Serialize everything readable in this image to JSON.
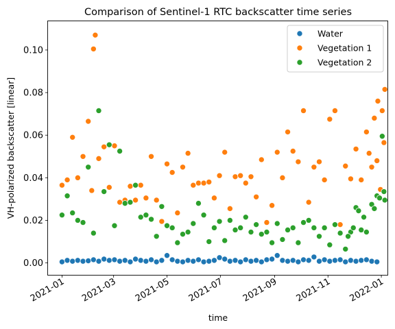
{
  "chart_data": {
    "type": "scatter",
    "title": "Comparison of Sentinel-1 RTC backscatter time series",
    "xlabel": "time",
    "ylabel": "VH-polarized backscatter [linear]",
    "x_ticks": [
      "2021-01",
      "2021-03",
      "2021-05",
      "2021-07",
      "2021-09",
      "2021-11",
      "2022-01"
    ],
    "y_ticks": [
      "0.00",
      "0.02",
      "0.04",
      "0.06",
      "0.08",
      "0.10"
    ],
    "xlim": [
      "2020-12-16",
      "2022-01-08"
    ],
    "ylim": [
      -0.0056,
      0.1135
    ],
    "grid": false,
    "legend_position": "top-right",
    "series": [
      {
        "name": "Water",
        "color": "#1f77b4",
        "points": [
          [
            "2021-01-01",
            0.0005
          ],
          [
            "2021-01-07",
            0.0012
          ],
          [
            "2021-01-13",
            0.0008
          ],
          [
            "2021-01-19",
            0.0012
          ],
          [
            "2021-01-25",
            0.0008
          ],
          [
            "2021-01-31",
            0.001
          ],
          [
            "2021-02-06",
            0.0015
          ],
          [
            "2021-02-12",
            0.0008
          ],
          [
            "2021-02-18",
            0.0018
          ],
          [
            "2021-02-24",
            0.0012
          ],
          [
            "2021-03-02",
            0.0015
          ],
          [
            "2021-03-08",
            0.0008
          ],
          [
            "2021-03-14",
            0.0012
          ],
          [
            "2021-03-20",
            0.0005
          ],
          [
            "2021-03-26",
            0.0018
          ],
          [
            "2021-04-01",
            0.0012
          ],
          [
            "2021-04-07",
            0.0008
          ],
          [
            "2021-04-13",
            0.0015
          ],
          [
            "2021-04-19",
            0.0005
          ],
          [
            "2021-04-25",
            0.0012
          ],
          [
            "2021-05-01",
            0.0035
          ],
          [
            "2021-05-07",
            0.0015
          ],
          [
            "2021-05-13",
            0.0008
          ],
          [
            "2021-05-19",
            0.0005
          ],
          [
            "2021-05-25",
            0.0012
          ],
          [
            "2021-05-31",
            0.0008
          ],
          [
            "2021-06-06",
            0.0015
          ],
          [
            "2021-06-12",
            0.0005
          ],
          [
            "2021-06-18",
            0.0008
          ],
          [
            "2021-06-24",
            0.0012
          ],
          [
            "2021-06-30",
            0.0025
          ],
          [
            "2021-07-06",
            0.0018
          ],
          [
            "2021-07-12",
            0.0008
          ],
          [
            "2021-07-18",
            0.0012
          ],
          [
            "2021-07-24",
            0.0005
          ],
          [
            "2021-07-30",
            0.0015
          ],
          [
            "2021-08-05",
            0.0008
          ],
          [
            "2021-08-11",
            0.0012
          ],
          [
            "2021-08-17",
            0.0005
          ],
          [
            "2021-08-23",
            0.0015
          ],
          [
            "2021-08-29",
            0.0018
          ],
          [
            "2021-09-04",
            0.0035
          ],
          [
            "2021-09-10",
            0.0012
          ],
          [
            "2021-09-16",
            0.0008
          ],
          [
            "2021-09-22",
            0.0012
          ],
          [
            "2021-09-28",
            0.0005
          ],
          [
            "2021-10-04",
            0.0015
          ],
          [
            "2021-10-10",
            0.0012
          ],
          [
            "2021-10-16",
            0.0028
          ],
          [
            "2021-10-22",
            0.0008
          ],
          [
            "2021-10-28",
            0.0015
          ],
          [
            "2021-11-03",
            0.0008
          ],
          [
            "2021-11-09",
            0.0012
          ],
          [
            "2021-11-15",
            0.0015
          ],
          [
            "2021-11-21",
            0.0005
          ],
          [
            "2021-11-27",
            0.0012
          ],
          [
            "2021-12-03",
            0.0008
          ],
          [
            "2021-12-09",
            0.0012
          ],
          [
            "2021-12-15",
            0.0015
          ],
          [
            "2021-12-21",
            0.0008
          ],
          [
            "2021-12-27",
            0.0005
          ]
        ]
      },
      {
        "name": "Vegetation 1",
        "color": "#ff7f0e",
        "points": [
          [
            "2021-01-01",
            0.0365
          ],
          [
            "2021-01-07",
            0.039
          ],
          [
            "2021-01-13",
            0.059
          ],
          [
            "2021-01-19",
            0.04
          ],
          [
            "2021-01-25",
            0.05
          ],
          [
            "2021-01-31",
            0.0665
          ],
          [
            "2021-02-04",
            0.034
          ],
          [
            "2021-02-06",
            0.1005
          ],
          [
            "2021-02-08",
            0.107
          ],
          [
            "2021-02-12",
            0.049
          ],
          [
            "2021-02-18",
            0.0545
          ],
          [
            "2021-02-24",
            0.0355
          ],
          [
            "2021-03-02",
            0.055
          ],
          [
            "2021-03-08",
            0.0285
          ],
          [
            "2021-03-14",
            0.0295
          ],
          [
            "2021-03-20",
            0.036
          ],
          [
            "2021-03-26",
            0.0295
          ],
          [
            "2021-04-01",
            0.0365
          ],
          [
            "2021-04-07",
            0.0305
          ],
          [
            "2021-04-13",
            0.05
          ],
          [
            "2021-04-19",
            0.0295
          ],
          [
            "2021-04-25",
            0.0195
          ],
          [
            "2021-05-01",
            0.0465
          ],
          [
            "2021-05-07",
            0.0425
          ],
          [
            "2021-05-13",
            0.0235
          ],
          [
            "2021-05-19",
            0.045
          ],
          [
            "2021-05-25",
            0.0515
          ],
          [
            "2021-05-31",
            0.0365
          ],
          [
            "2021-06-06",
            0.0375
          ],
          [
            "2021-06-12",
            0.0375
          ],
          [
            "2021-06-18",
            0.038
          ],
          [
            "2021-06-24",
            0.0305
          ],
          [
            "2021-06-30",
            0.041
          ],
          [
            "2021-07-06",
            0.052
          ],
          [
            "2021-07-12",
            0.0255
          ],
          [
            "2021-07-18",
            0.0405
          ],
          [
            "2021-07-24",
            0.041
          ],
          [
            "2021-07-30",
            0.0375
          ],
          [
            "2021-08-05",
            0.0405
          ],
          [
            "2021-08-11",
            0.031
          ],
          [
            "2021-08-17",
            0.0485
          ],
          [
            "2021-08-23",
            0.019
          ],
          [
            "2021-08-29",
            0.027
          ],
          [
            "2021-09-04",
            0.052
          ],
          [
            "2021-09-10",
            0.04
          ],
          [
            "2021-09-16",
            0.0615
          ],
          [
            "2021-09-22",
            0.0525
          ],
          [
            "2021-09-28",
            0.0475
          ],
          [
            "2021-10-04",
            0.0715
          ],
          [
            "2021-10-10",
            0.0285
          ],
          [
            "2021-10-16",
            0.045
          ],
          [
            "2021-10-22",
            0.0475
          ],
          [
            "2021-10-28",
            0.039
          ],
          [
            "2021-11-03",
            0.0675
          ],
          [
            "2021-11-09",
            0.0715
          ],
          [
            "2021-11-15",
            0.018
          ],
          [
            "2021-11-21",
            0.0455
          ],
          [
            "2021-11-27",
            0.0395
          ],
          [
            "2021-12-03",
            0.0535
          ],
          [
            "2021-12-09",
            0.039
          ],
          [
            "2021-12-15",
            0.0615
          ],
          [
            "2021-12-21",
            0.045
          ],
          [
            "2021-12-27",
            0.048
          ],
          [
            "2022-01-02",
            0.0715
          ],
          [
            "2022-01-04",
            0.0565
          ],
          [
            "2021-12-31",
            0.0345
          ],
          [
            "2021-12-18",
            0.0515
          ],
          [
            "2021-12-24",
            0.068
          ],
          [
            "2021-12-28",
            0.076
          ],
          [
            "2022-01-05",
            0.0815
          ]
        ]
      },
      {
        "name": "Vegetation 2",
        "color": "#2ca02c",
        "points": [
          [
            "2021-01-01",
            0.0225
          ],
          [
            "2021-01-07",
            0.0315
          ],
          [
            "2021-01-13",
            0.0235
          ],
          [
            "2021-01-19",
            0.02
          ],
          [
            "2021-01-25",
            0.019
          ],
          [
            "2021-01-31",
            0.045
          ],
          [
            "2021-02-06",
            0.014
          ],
          [
            "2021-02-12",
            0.0715
          ],
          [
            "2021-02-18",
            0.0335
          ],
          [
            "2021-02-24",
            0.0555
          ],
          [
            "2021-03-02",
            0.0175
          ],
          [
            "2021-03-08",
            0.0525
          ],
          [
            "2021-03-14",
            0.028
          ],
          [
            "2021-03-20",
            0.0285
          ],
          [
            "2021-03-26",
            0.0365
          ],
          [
            "2021-04-01",
            0.0215
          ],
          [
            "2021-04-07",
            0.0225
          ],
          [
            "2021-04-13",
            0.0205
          ],
          [
            "2021-04-19",
            0.0125
          ],
          [
            "2021-04-25",
            0.0265
          ],
          [
            "2021-05-01",
            0.0175
          ],
          [
            "2021-05-07",
            0.0165
          ],
          [
            "2021-05-13",
            0.0095
          ],
          [
            "2021-05-19",
            0.0135
          ],
          [
            "2021-05-25",
            0.0145
          ],
          [
            "2021-05-31",
            0.0185
          ],
          [
            "2021-06-06",
            0.028
          ],
          [
            "2021-06-12",
            0.0225
          ],
          [
            "2021-06-18",
            0.01
          ],
          [
            "2021-06-24",
            0.0165
          ],
          [
            "2021-06-30",
            0.0195
          ],
          [
            "2021-07-06",
            0.0105
          ],
          [
            "2021-07-12",
            0.02
          ],
          [
            "2021-07-18",
            0.0155
          ],
          [
            "2021-07-24",
            0.0165
          ],
          [
            "2021-07-30",
            0.0215
          ],
          [
            "2021-08-05",
            0.0145
          ],
          [
            "2021-08-11",
            0.018
          ],
          [
            "2021-08-17",
            0.0135
          ],
          [
            "2021-08-23",
            0.0145
          ],
          [
            "2021-08-29",
            0.0095
          ],
          [
            "2021-09-04",
            0.0185
          ],
          [
            "2021-09-10",
            0.011
          ],
          [
            "2021-09-16",
            0.0155
          ],
          [
            "2021-09-22",
            0.0165
          ],
          [
            "2021-09-28",
            0.0095
          ],
          [
            "2021-10-04",
            0.019
          ],
          [
            "2021-10-10",
            0.02
          ],
          [
            "2021-10-16",
            0.0165
          ],
          [
            "2021-10-22",
            0.0125
          ],
          [
            "2021-10-28",
            0.0165
          ],
          [
            "2021-11-03",
            0.0085
          ],
          [
            "2021-11-09",
            0.018
          ],
          [
            "2021-11-15",
            0.014
          ],
          [
            "2021-11-21",
            0.0065
          ],
          [
            "2021-11-27",
            0.0145
          ],
          [
            "2021-12-03",
            0.026
          ],
          [
            "2021-12-09",
            0.0155
          ],
          [
            "2021-12-15",
            0.0145
          ],
          [
            "2021-12-21",
            0.0275
          ],
          [
            "2021-12-27",
            0.0315
          ],
          [
            "2022-01-02",
            0.0595
          ],
          [
            "2022-01-04",
            0.0335
          ],
          [
            "2021-12-06",
            0.0245
          ],
          [
            "2021-12-12",
            0.0215
          ],
          [
            "2021-12-24",
            0.0255
          ],
          [
            "2021-12-30",
            0.0305
          ],
          [
            "2022-01-05",
            0.0295
          ],
          [
            "2021-11-30",
            0.0165
          ],
          [
            "2021-11-24",
            0.0125
          ]
        ]
      }
    ]
  }
}
